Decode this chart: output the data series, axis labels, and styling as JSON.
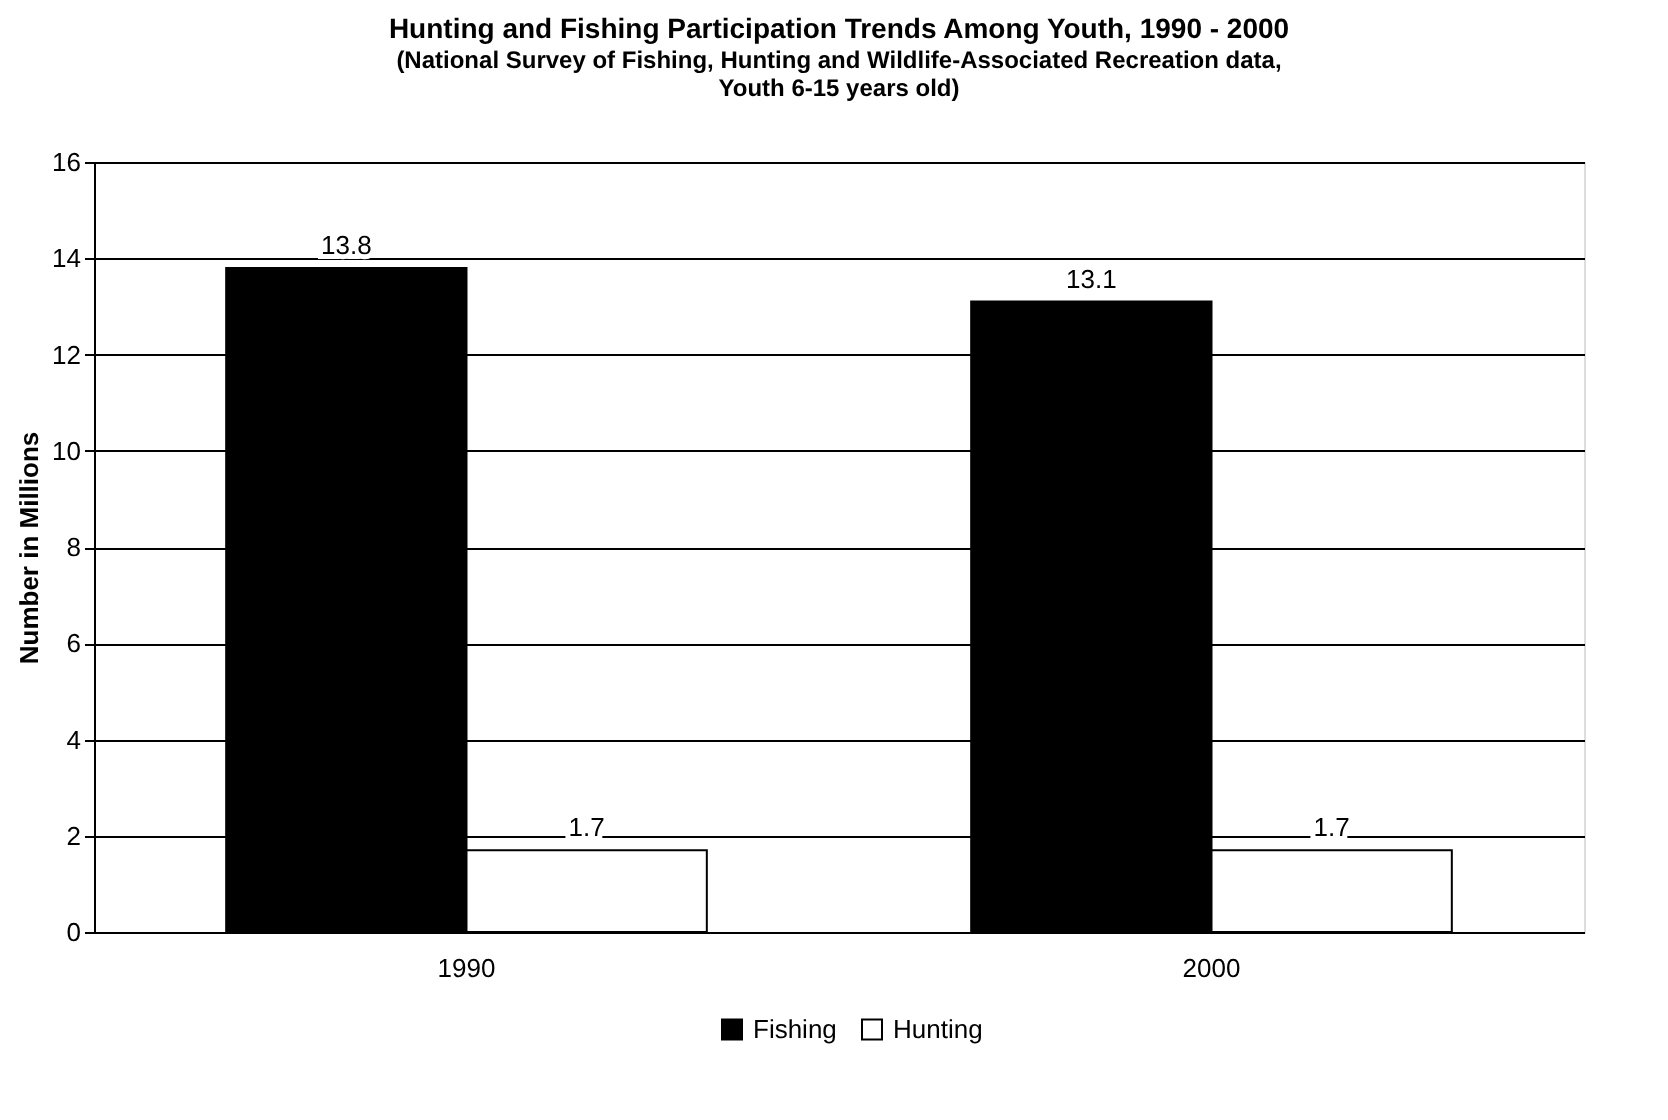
{
  "chart_data": {
    "type": "bar",
    "title": "Hunting and Fishing Participation Trends Among Youth, 1990 - 2000",
    "subtitle": "(National Survey of Fishing, Hunting and Wildlife-Associated Recreation data, Youth 6-15 years old)",
    "ylabel": "Number in Millions",
    "categories": [
      "1990",
      "2000"
    ],
    "series": [
      {
        "name": "Fishing",
        "color": "#000000",
        "values": [
          13.8,
          13.1
        ]
      },
      {
        "name": "Hunting",
        "color": "#ffffff",
        "values": [
          1.7,
          1.7
        ]
      }
    ],
    "ylim": [
      0,
      16
    ],
    "yticks": [
      0,
      2,
      4,
      6,
      8,
      10,
      12,
      14,
      16
    ],
    "grid": "y",
    "legend": "bottom",
    "data_labels": true
  }
}
